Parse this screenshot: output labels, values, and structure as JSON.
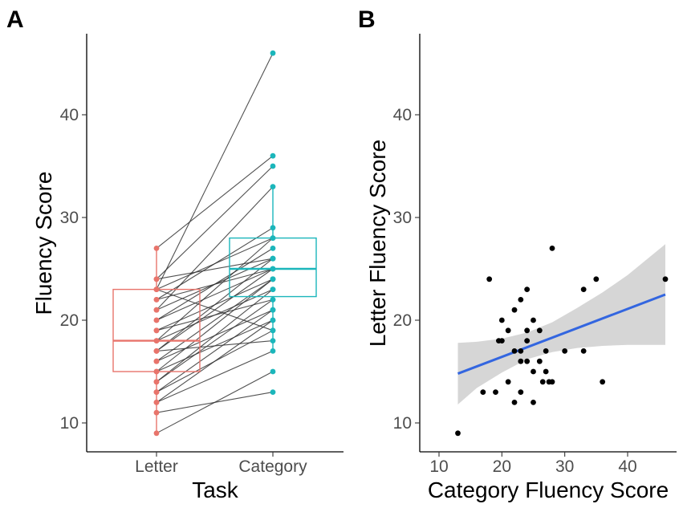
{
  "colors": {
    "letter": "#e8746b",
    "category": "#1bb6bb",
    "pair_line": "#333333",
    "scatter_point": "#000000",
    "fit_line": "#3366e0",
    "ci_band": "#d4d4d4"
  },
  "chart_data": [
    {
      "panel": "A",
      "type": "box-paired",
      "title": "",
      "xlabel": "Task",
      "ylabel": "Fluency Score",
      "categories": [
        "Letter",
        "Category"
      ],
      "ylim": [
        8,
        48
      ],
      "yticks": [
        10,
        20,
        30,
        40
      ],
      "box_stats": [
        {
          "name": "Letter",
          "q1": 15,
          "median": 18,
          "q3": 23,
          "whisker_low": 9,
          "whisker_high": 27
        },
        {
          "name": "Category",
          "q1": 22.3,
          "median": 25,
          "q3": 28,
          "whisker_low": 17,
          "whisker_high": 33
        }
      ],
      "pairs": [
        [
          9,
          15
        ],
        [
          11,
          13
        ],
        [
          12,
          17
        ],
        [
          12,
          20
        ],
        [
          13,
          19
        ],
        [
          13,
          21
        ],
        [
          14,
          22
        ],
        [
          14,
          23
        ],
        [
          15,
          20
        ],
        [
          15,
          24
        ],
        [
          16,
          21
        ],
        [
          16,
          24
        ],
        [
          17,
          18
        ],
        [
          17,
          25
        ],
        [
          17,
          26
        ],
        [
          18,
          23
        ],
        [
          18,
          28
        ],
        [
          19,
          24
        ],
        [
          19,
          22
        ],
        [
          20,
          27
        ],
        [
          20,
          25
        ],
        [
          21,
          26
        ],
        [
          21,
          33
        ],
        [
          22,
          25
        ],
        [
          22,
          29
        ],
        [
          23,
          19
        ],
        [
          23,
          28
        ],
        [
          23,
          46
        ],
        [
          24,
          35
        ],
        [
          24,
          26
        ],
        [
          27,
          36
        ]
      ]
    },
    {
      "panel": "B",
      "type": "scatter",
      "title": "",
      "xlabel": "Category Fluency Score",
      "ylabel": "Letter Fluency Score",
      "xlim": [
        8,
        48
      ],
      "ylim": [
        8,
        48
      ],
      "xticks": [
        10,
        20,
        30,
        40
      ],
      "yticks": [
        10,
        20,
        30,
        40
      ],
      "points": [
        [
          13,
          9
        ],
        [
          17,
          13
        ],
        [
          18,
          24
        ],
        [
          19,
          13
        ],
        [
          19.5,
          18
        ],
        [
          20,
          20
        ],
        [
          20,
          18
        ],
        [
          21,
          19
        ],
        [
          21,
          14
        ],
        [
          22,
          12
        ],
        [
          22,
          21
        ],
        [
          22,
          17
        ],
        [
          23,
          22
        ],
        [
          23,
          16
        ],
        [
          23,
          13
        ],
        [
          23,
          17
        ],
        [
          24,
          23
        ],
        [
          24,
          18
        ],
        [
          24,
          19
        ],
        [
          24,
          16
        ],
        [
          25,
          15
        ],
        [
          25,
          12
        ],
        [
          25,
          20
        ],
        [
          26,
          19
        ],
        [
          26,
          16
        ],
        [
          26.5,
          14
        ],
        [
          27,
          17
        ],
        [
          27,
          15
        ],
        [
          27.5,
          14
        ],
        [
          28,
          27
        ],
        [
          28,
          14
        ],
        [
          30,
          17
        ],
        [
          33,
          23
        ],
        [
          33,
          17
        ],
        [
          35,
          24
        ],
        [
          36,
          14
        ],
        [
          46,
          24
        ]
      ],
      "fit": {
        "x": [
          13,
          46
        ],
        "y": [
          14.8,
          22.5
        ]
      },
      "ci_band": {
        "x": [
          13,
          16,
          20,
          24,
          28,
          32,
          36,
          40,
          43,
          46
        ],
        "upper": [
          17.8,
          17.9,
          18.2,
          18.8,
          19.8,
          21.2,
          22.7,
          24.4,
          25.9,
          27.4
        ],
        "lower": [
          11.8,
          13.4,
          14.9,
          16.2,
          16.9,
          17.3,
          17.5,
          17.6,
          17.6,
          17.6
        ]
      }
    }
  ]
}
